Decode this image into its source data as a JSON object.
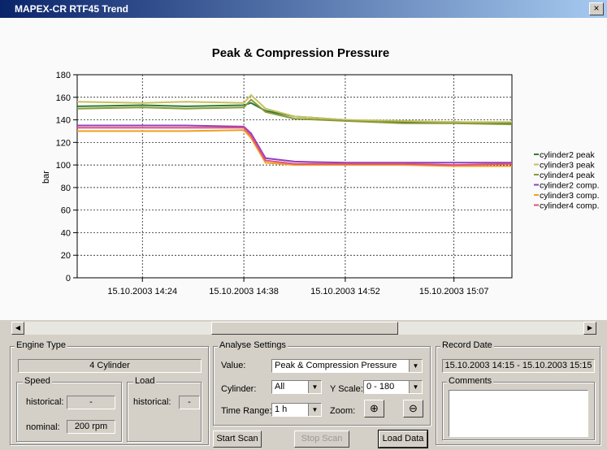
{
  "window": {
    "title": "MAPEX-CR RTF45 Trend",
    "close": "×"
  },
  "chart_data": {
    "type": "line",
    "title": "Peak & Compression Pressure",
    "y_label": "bar",
    "x": [
      "15.10.2003 14:15",
      "15.10.2003 14:24",
      "15.10.2003 14:30",
      "15.10.2003 14:38",
      "15.10.2003 14:39",
      "15.10.2003 14:41",
      "15.10.2003 14:45",
      "15.10.2003 14:52",
      "15.10.2003 15:00",
      "15.10.2003 15:07",
      "15.10.2003 15:15"
    ],
    "xlim": [
      "15.10.2003 14:15",
      "15.10.2003 15:15"
    ],
    "xticks": [
      "15.10.2003 14:24",
      "15.10.2003 14:38",
      "15.10.2003 14:52",
      "15.10.2003 15:07"
    ],
    "ylim": [
      0,
      180
    ],
    "yticks": [
      0,
      20,
      40,
      60,
      80,
      100,
      120,
      140,
      160,
      180
    ],
    "grid": true,
    "legend": "right",
    "series": [
      {
        "name": "cylinder2 peak",
        "color": "#2e7d32",
        "values": [
          152,
          153,
          152,
          153,
          155,
          148,
          143,
          140,
          138,
          138,
          137
        ]
      },
      {
        "name": "cylinder3 peak",
        "color": "#c8c060",
        "values": [
          156,
          155,
          156,
          155,
          162,
          150,
          143,
          140,
          139,
          138,
          138
        ]
      },
      {
        "name": "cylinder4 peak",
        "color": "#8a9a3a",
        "values": [
          150,
          151,
          150,
          151,
          158,
          147,
          141,
          139,
          137,
          137,
          136
        ]
      },
      {
        "name": "cylinder2 comp.",
        "color": "#9040c0",
        "values": [
          135,
          135,
          135,
          134,
          128,
          106,
          103,
          102,
          102,
          102,
          102
        ]
      },
      {
        "name": "cylinder3 comp.",
        "color": "#f0a020",
        "values": [
          130,
          130,
          130,
          131,
          124,
          102,
          100,
          100,
          100,
          99,
          99
        ]
      },
      {
        "name": "cylinder4 comp.",
        "color": "#e05080",
        "values": [
          133,
          133,
          133,
          133,
          126,
          104,
          101,
          101,
          101,
          100,
          101
        ]
      }
    ]
  },
  "engine": {
    "group": "Engine Type",
    "type": "4 Cylinder",
    "speed": {
      "group": "Speed",
      "historical_label": "historical:",
      "historical": "-",
      "nominal_label": "nominal:",
      "nominal": "200 rpm"
    },
    "load": {
      "group": "Load",
      "historical_label": "historical:",
      "historical": "-"
    }
  },
  "analyse": {
    "group": "Analyse Settings",
    "value_label": "Value:",
    "value": "Peak & Compression Pressure",
    "cylinder_label": "Cylinder:",
    "cylinder": "All",
    "yscale_label": "Y Scale:",
    "yscale": "0 - 180",
    "time_range_label": "Time Range:",
    "time_range": "1 h",
    "zoom_label": "Zoom:"
  },
  "buttons": {
    "start": "Start Scan",
    "stop": "Stop Scan",
    "load": "Load Data"
  },
  "record": {
    "group": "Record Date",
    "date": "15.10.2003 14:15 - 15.10.2003 15:15",
    "comments": "Comments"
  }
}
